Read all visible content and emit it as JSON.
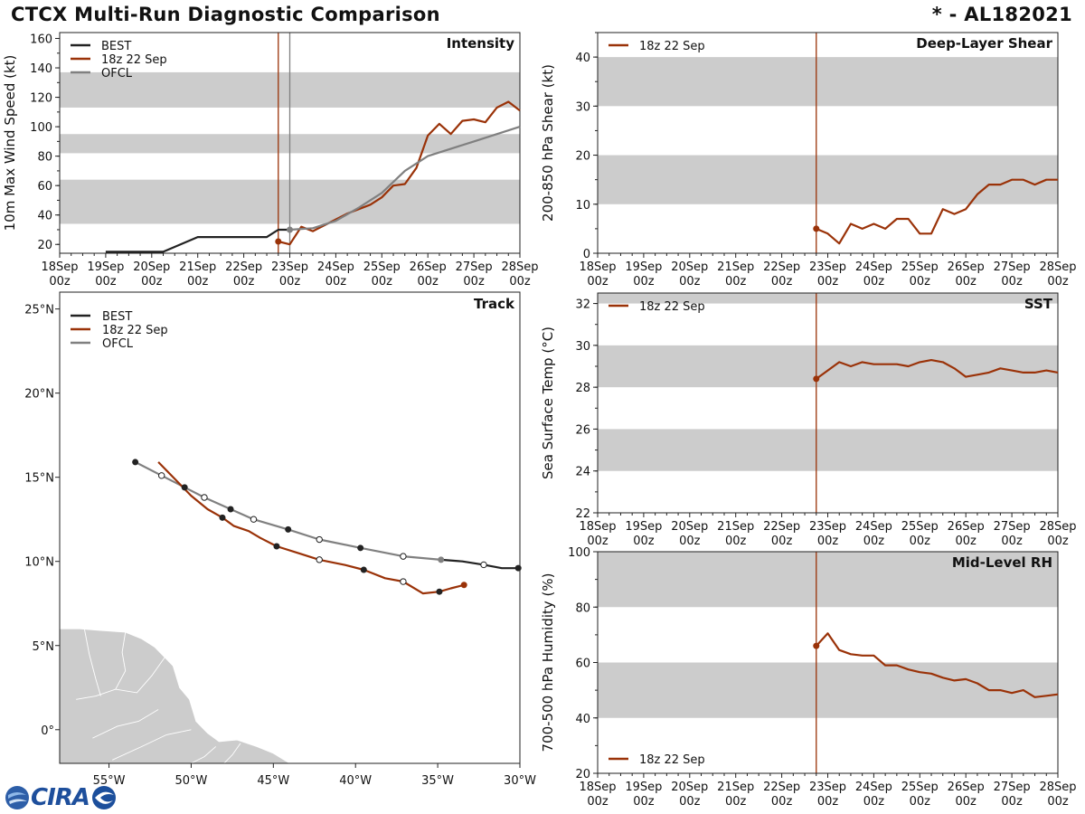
{
  "header": {
    "title": "CTCX Multi-Run Diagnostic Comparison",
    "storm": "* - AL182021"
  },
  "logo": {
    "text": "CIRA"
  },
  "colors": {
    "best": "#222222",
    "run": "#9a3208",
    "ofcl": "#808080",
    "band": "#cccccc",
    "land": "#cccccc"
  },
  "time_ticks": [
    {
      "day": "18Sep",
      "hour": "00z"
    },
    {
      "day": "19Sep",
      "hour": "00z"
    },
    {
      "day": "20Sep",
      "hour": "00z"
    },
    {
      "day": "21Sep",
      "hour": "00z"
    },
    {
      "day": "22Sep",
      "hour": "00z"
    },
    {
      "day": "23Sep",
      "hour": "00z"
    },
    {
      "day": "24Sep",
      "hour": "00z"
    },
    {
      "day": "25Sep",
      "hour": "00z"
    },
    {
      "day": "26Sep",
      "hour": "00z"
    },
    {
      "day": "27Sep",
      "hour": "00z"
    },
    {
      "day": "28Sep",
      "hour": "00z"
    }
  ],
  "chart_data": [
    {
      "id": "intensity",
      "type": "line",
      "title": "Intensity",
      "ylabel": "10m Max Wind Speed (kt)",
      "xlim": [
        0,
        240
      ],
      "ylim": [
        14,
        164
      ],
      "yticks": [
        20,
        40,
        60,
        80,
        100,
        120,
        140,
        160
      ],
      "bands": [
        [
          34,
          64
        ],
        [
          82,
          95
        ],
        [
          113,
          137
        ]
      ],
      "vlines": [
        {
          "x": 114,
          "series": "run"
        },
        {
          "x": 120,
          "series": "ofcl"
        }
      ],
      "legend": [
        "BEST",
        "18z 22 Sep",
        "OFCL"
      ],
      "series": [
        {
          "name": "BEST",
          "color_key": "best",
          "x": [
            24,
            54,
            72,
            84,
            96,
            108,
            114,
            120
          ],
          "y": [
            15,
            15,
            25,
            25,
            25,
            25,
            30,
            30
          ]
        },
        {
          "name": "18z 22 Sep",
          "color_key": "run",
          "start_marker": true,
          "x": [
            114,
            120,
            126,
            132,
            138,
            144,
            150,
            156,
            162,
            168,
            174,
            180,
            186,
            192,
            198,
            204,
            210,
            216,
            222,
            228,
            234,
            240
          ],
          "y": [
            22,
            20,
            32,
            29,
            33,
            37,
            41,
            44,
            47,
            52,
            60,
            61,
            72,
            94,
            102,
            95,
            104,
            105,
            103,
            113,
            117,
            111
          ]
        },
        {
          "name": "OFCL",
          "color_key": "ofcl",
          "start_marker": true,
          "x": [
            120,
            132,
            144,
            156,
            168,
            180,
            192,
            216,
            240
          ],
          "y": [
            30,
            31,
            36,
            45,
            55,
            70,
            80,
            90,
            100
          ]
        }
      ]
    },
    {
      "id": "shear",
      "type": "line",
      "title": "Deep-Layer Shear",
      "ylabel": "200-850 hPa Shear (kt)",
      "xlim": [
        0,
        240
      ],
      "ylim": [
        0,
        45
      ],
      "yticks": [
        0,
        10,
        20,
        30,
        40
      ],
      "bands": [
        [
          10,
          20
        ],
        [
          30,
          40
        ]
      ],
      "vlines": [
        {
          "x": 114,
          "series": "run"
        }
      ],
      "legend": [
        "18z 22 Sep"
      ],
      "series": [
        {
          "name": "18z 22 Sep",
          "color_key": "run",
          "start_marker": true,
          "x": [
            114,
            120,
            126,
            132,
            138,
            144,
            150,
            156,
            162,
            168,
            174,
            180,
            186,
            192,
            198,
            204,
            210,
            216,
            222,
            228,
            234,
            240
          ],
          "y": [
            5,
            4,
            2,
            6,
            5,
            6,
            5,
            7,
            7,
            4,
            4,
            9,
            8,
            9,
            12,
            14,
            14,
            15,
            15,
            14,
            15,
            15
          ]
        }
      ]
    },
    {
      "id": "sst",
      "type": "line",
      "title": "SST",
      "ylabel": "Sea Surface Temp (°C)",
      "xlim": [
        0,
        240
      ],
      "ylim": [
        22,
        32.5
      ],
      "yticks": [
        22,
        24,
        26,
        28,
        30,
        32
      ],
      "bands": [
        [
          24,
          26
        ],
        [
          28,
          30
        ],
        [
          32,
          34
        ]
      ],
      "vlines": [
        {
          "x": 114,
          "series": "run"
        }
      ],
      "legend": [
        "18z 22 Sep"
      ],
      "series": [
        {
          "name": "18z 22 Sep",
          "color_key": "run",
          "start_marker": true,
          "x": [
            114,
            120,
            126,
            132,
            138,
            144,
            150,
            156,
            162,
            168,
            174,
            180,
            186,
            192,
            198,
            204,
            210,
            216,
            222,
            228,
            234,
            240
          ],
          "y": [
            28.4,
            28.8,
            29.2,
            29.0,
            29.2,
            29.1,
            29.1,
            29.1,
            29.0,
            29.2,
            29.3,
            29.2,
            28.9,
            28.5,
            28.6,
            28.7,
            28.9,
            28.8,
            28.7,
            28.7,
            28.8,
            28.7
          ]
        }
      ]
    },
    {
      "id": "rh",
      "type": "line",
      "title": "Mid-Level RH",
      "ylabel": "700-500 hPa Humidity (%)",
      "xlim": [
        0,
        240
      ],
      "ylim": [
        20,
        100
      ],
      "yticks": [
        20,
        40,
        60,
        80,
        100
      ],
      "bands": [
        [
          40,
          60
        ],
        [
          80,
          100
        ]
      ],
      "vlines": [
        {
          "x": 114,
          "series": "run"
        }
      ],
      "legend": [
        "18z 22 Sep"
      ],
      "legend_position": "bottom-left",
      "series": [
        {
          "name": "18z 22 Sep",
          "color_key": "run",
          "start_marker": true,
          "x": [
            114,
            120,
            126,
            132,
            138,
            144,
            150,
            156,
            162,
            168,
            174,
            180,
            186,
            192,
            198,
            204,
            210,
            216,
            222,
            228,
            234,
            240
          ],
          "y": [
            66,
            70.5,
            64.5,
            63,
            62.5,
            62.5,
            59,
            59,
            57.5,
            56.5,
            56,
            54.5,
            53.5,
            54,
            52.5,
            50,
            50,
            49,
            50,
            47.5,
            48,
            48.5
          ]
        }
      ]
    },
    {
      "id": "track",
      "type": "scatter",
      "title": "Track",
      "xlim": [
        -58,
        -30
      ],
      "ylim": [
        -2,
        26
      ],
      "xticks": [
        {
          "v": -55,
          "label": "55°W"
        },
        {
          "v": -50,
          "label": "50°W"
        },
        {
          "v": -45,
          "label": "45°W"
        },
        {
          "v": -40,
          "label": "40°W"
        },
        {
          "v": -35,
          "label": "35°W"
        },
        {
          "v": -30,
          "label": "30°W"
        }
      ],
      "yticks": [
        {
          "v": 0,
          "label": "0°"
        },
        {
          "v": 5,
          "label": "5°N"
        },
        {
          "v": 10,
          "label": "10°N"
        },
        {
          "v": 15,
          "label": "15°N"
        },
        {
          "v": 20,
          "label": "20°N"
        },
        {
          "v": 25,
          "label": "25°N"
        }
      ],
      "legend": [
        "BEST",
        "18z 22 Sep",
        "OFCL"
      ],
      "series": [
        {
          "name": "BEST",
          "color_key": "best",
          "lon": [
            -30.1,
            -31.1,
            -32.2,
            -33.5,
            -34.8
          ],
          "lat": [
            9.6,
            9.6,
            9.8,
            10.0,
            10.1
          ]
        },
        {
          "name": "18z 22 Sep",
          "color_key": "run",
          "lon": [
            -33.4,
            -34.2,
            -34.9,
            -35.9,
            -37.1,
            -38.2,
            -39.5,
            -40.7,
            -42.2,
            -43.5,
            -44.8,
            -45.8,
            -46.5,
            -47.4,
            -48.1,
            -49.0,
            -50.0,
            -51.0,
            -52.0
          ],
          "lat": [
            8.6,
            8.4,
            8.2,
            8.1,
            8.8,
            9.0,
            9.5,
            9.8,
            10.1,
            10.5,
            10.9,
            11.4,
            11.8,
            12.1,
            12.6,
            13.1,
            13.9,
            14.9,
            15.9
          ],
          "open_markers": [
            4,
            8
          ],
          "filled_markers": [
            0,
            2,
            6,
            10,
            14
          ]
        },
        {
          "name": "OFCL",
          "color_key": "ofcl",
          "lon": [
            -34.8,
            -37.1,
            -39.7,
            -42.2,
            -44.1,
            -46.2,
            -47.6,
            -49.2,
            -50.4,
            -51.8,
            -53.4
          ],
          "lat": [
            10.1,
            10.3,
            10.8,
            11.3,
            11.9,
            12.5,
            13.1,
            13.8,
            14.4,
            15.1,
            15.9
          ],
          "open_markers": [
            1,
            3,
            5,
            7,
            9
          ],
          "filled_markers": [
            0,
            2,
            4,
            6,
            8,
            10
          ]
        }
      ]
    }
  ]
}
